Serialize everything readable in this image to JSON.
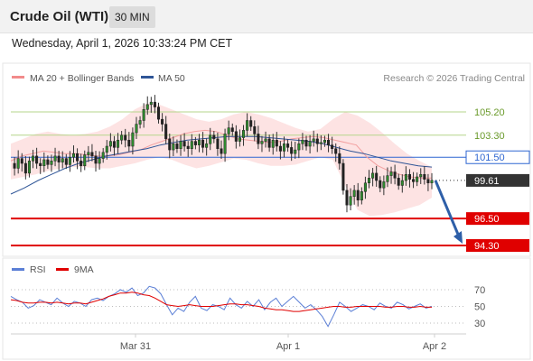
{
  "header": {
    "title": "Crude Oil (WTI)",
    "timeframe": "30 MIN"
  },
  "datetime": "Wednesday, April 1, 2026 10:33:24 PM CET",
  "legend": {
    "items": [
      {
        "label": "MA 20 + Bollinger Bands",
        "color": "#f28b8b"
      },
      {
        "label": "MA 50",
        "color": "#2f5597"
      }
    ],
    "credit": "Research © 2026 Trading Central"
  },
  "chart_data": [
    {
      "type": "candlestick",
      "levels": [
        {
          "value": 105.2,
          "label": "105.20",
          "kind": "resistance-minor",
          "color": "#b5d58b",
          "label_color": "#6a9a2a"
        },
        {
          "value": 103.3,
          "label": "103.30",
          "kind": "resistance-minor",
          "color": "#b5d58b",
          "label_color": "#6a9a2a"
        },
        {
          "value": 101.5,
          "label": "101.50",
          "kind": "pivot",
          "color": "#2e66d1",
          "label_color": "#2e66d1"
        },
        {
          "value": 99.61,
          "label": "99.61",
          "kind": "last-price",
          "color": "#333333",
          "label_color": "#333333"
        },
        {
          "value": 96.5,
          "label": "96.50",
          "kind": "support",
          "color": "#e00000",
          "label_color": "#e00000"
        },
        {
          "value": 94.3,
          "label": "94.30",
          "kind": "support",
          "color": "#e00000",
          "label_color": "#e00000"
        }
      ],
      "price_path": [
        101.0,
        100.6,
        101.4,
        101.0,
        100.2,
        101.2,
        101.6,
        101.0,
        100.8,
        101.3,
        100.9,
        101.2,
        101.6,
        101.1,
        101.4,
        100.9,
        101.5,
        101.8,
        101.2,
        100.8,
        101.7,
        101.9,
        101.6,
        101.0,
        101.4,
        101.9,
        102.4,
        102.8,
        102.3,
        102.9,
        103.3,
        102.9,
        102.4,
        103.5,
        104.2,
        104.5,
        105.4,
        105.8,
        106.0,
        105.6,
        104.6,
        104.2,
        103.0,
        102.1,
        102.6,
        102.2,
        102.8,
        102.4,
        102.2,
        102.8,
        102.5,
        102.9,
        102.3,
        102.6,
        103.3,
        103.0,
        102.2,
        101.8,
        103.4,
        103.9,
        103.6,
        102.8,
        103.1,
        103.7,
        104.5,
        104.0,
        103.4,
        102.6,
        102.8,
        103.0,
        102.3,
        102.9,
        102.4,
        102.0,
        102.6,
        102.3,
        101.8,
        102.1,
        102.6,
        102.9,
        102.4,
        102.8,
        103.0,
        102.6,
        102.7,
        102.9,
        102.5,
        102.2,
        101.8,
        101.0,
        98.8,
        97.6,
        98.3,
        98.8,
        98.0,
        98.7,
        99.4,
        99.8,
        100.2,
        99.6,
        99.0,
        99.5,
        100.0,
        100.3,
        99.8,
        99.2,
        99.6,
        100.1,
        99.7,
        99.5,
        99.9,
        100.1,
        99.7,
        99.4,
        99.61
      ],
      "forecast_arrow": {
        "from": 99.61,
        "to": 94.3
      },
      "ma20_path": [
        101.2,
        101.6,
        101.8,
        102.0,
        101.9,
        101.8,
        101.8,
        101.7,
        101.6,
        101.6,
        101.7,
        101.9,
        102.1,
        102.5,
        102.8,
        103.1,
        103.4,
        103.6,
        103.7,
        103.6,
        103.3,
        103.0,
        102.9,
        102.8,
        102.7,
        102.8,
        103.0,
        103.1,
        103.2,
        103.1,
        102.9,
        102.7,
        102.5,
        101.5,
        100.8,
        100.4,
        100.1,
        99.9,
        99.8,
        99.8
      ],
      "ma50_path": [
        98.5,
        99.0,
        99.6,
        100.1,
        100.6,
        101.0,
        101.3,
        101.6,
        101.8,
        102.0,
        102.2,
        102.5,
        102.7,
        102.9,
        103.0,
        103.1,
        103.2,
        103.2,
        103.2,
        103.1,
        103.0,
        102.9,
        102.8,
        102.6,
        102.3,
        102.0,
        101.8,
        101.5,
        101.2,
        101.0,
        100.8,
        100.7
      ],
      "bb_upper_path": [
        102.6,
        103.0,
        103.4,
        103.6,
        103.4,
        103.3,
        103.4,
        103.6,
        104.0,
        104.6,
        105.4,
        105.9,
        105.8,
        105.4,
        105.0,
        104.6,
        104.4,
        104.6,
        105.0,
        105.2,
        105.0,
        104.7,
        104.3,
        103.9,
        103.6,
        103.8,
        104.6,
        105.2,
        104.9,
        104.3,
        103.5,
        102.6,
        101.8,
        101.2,
        100.7
      ],
      "bb_lower_path": [
        99.7,
        99.9,
        100.1,
        100.4,
        100.6,
        100.7,
        100.7,
        100.6,
        100.6,
        100.8,
        101.0,
        101.3,
        101.5,
        101.3,
        100.9,
        100.6,
        100.8,
        101.1,
        101.4,
        101.3,
        101.0,
        100.8,
        100.8,
        100.9,
        101.2,
        101.5,
        101.3,
        99.2,
        97.2,
        96.7,
        96.8,
        97.0,
        97.3,
        97.6,
        98.2
      ]
    },
    {
      "type": "line",
      "legend": [
        {
          "label": "RSI",
          "color": "#5b7fd6"
        },
        {
          "label": "9MA",
          "color": "#e00000"
        }
      ],
      "yticks": [
        70,
        50,
        30
      ],
      "series": [
        {
          "name": "RSI",
          "values": [
            62,
            58,
            55,
            48,
            51,
            58,
            55,
            52,
            60,
            54,
            50,
            56,
            54,
            50,
            58,
            60,
            57,
            62,
            65,
            70,
            67,
            72,
            63,
            66,
            74,
            72,
            65,
            52,
            40,
            48,
            44,
            55,
            62,
            48,
            45,
            52,
            50,
            46,
            60,
            52,
            48,
            56,
            50,
            58,
            46,
            55,
            60,
            50,
            56,
            62,
            55,
            48,
            52,
            46,
            38,
            26,
            40,
            55,
            50,
            44,
            48,
            52,
            50,
            46,
            54,
            50,
            48,
            55,
            52,
            47,
            50,
            53,
            48,
            50
          ]
        },
        {
          "name": "9MA",
          "values": [
            58,
            57,
            55,
            54,
            54,
            55,
            55,
            54,
            55,
            54,
            53,
            54,
            54,
            53,
            55,
            57,
            59,
            62,
            64,
            66,
            66,
            67,
            66,
            64,
            63,
            60,
            56,
            52,
            51,
            50,
            51,
            52,
            51,
            50,
            50,
            50,
            51,
            52,
            53,
            53,
            52,
            52,
            51,
            50,
            48,
            47,
            46,
            46,
            45,
            44,
            44,
            45,
            46,
            47,
            48,
            49,
            50,
            50,
            49,
            49,
            50,
            50,
            50,
            50,
            50,
            49,
            49,
            50,
            50,
            49,
            49,
            50,
            49,
            49
          ]
        }
      ],
      "x_ticks": [
        "Mar 31",
        "Apr 1",
        "Apr 2"
      ]
    }
  ]
}
